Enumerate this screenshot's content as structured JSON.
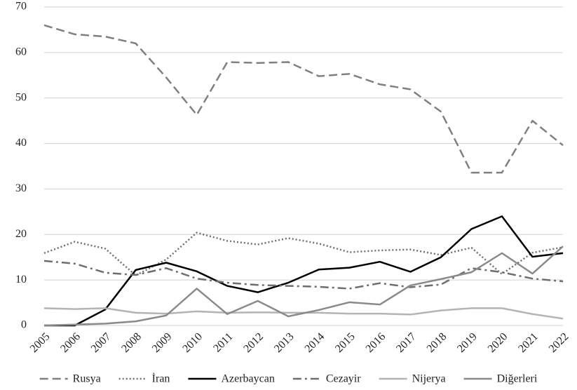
{
  "chart_data": {
    "type": "line",
    "categories": [
      "2005",
      "2006",
      "2007",
      "2008",
      "2009",
      "2010",
      "2011",
      "2012",
      "2013",
      "2014",
      "2015",
      "2016",
      "2017",
      "2018",
      "2019",
      "2020",
      "2021",
      "2022"
    ],
    "series": [
      {
        "name": "Rusya",
        "color": "#808080",
        "dash": "dashed",
        "values": [
          66,
          64,
          63.5,
          62,
          54.5,
          46.3,
          57.9,
          57.7,
          57.9,
          54.8,
          55.3,
          53,
          51.9,
          47,
          33.6,
          33.6,
          45,
          39.6
        ]
      },
      {
        "name": "İran",
        "color": "#707070",
        "dash": "dotted",
        "values": [
          15.9,
          18.4,
          16.9,
          11,
          14.5,
          20.4,
          18.6,
          17.8,
          19.2,
          18,
          16.1,
          16.5,
          16.7,
          15.5,
          17.1,
          11.3,
          16,
          17.2
        ]
      },
      {
        "name": "Azerbaycan",
        "color": "#000000",
        "dash": "solid",
        "values": [
          0,
          0,
          3.5,
          12.2,
          13.8,
          11.9,
          8.7,
          7.3,
          9.4,
          12.3,
          12.7,
          14,
          11.8,
          15,
          21.2,
          24,
          15.1,
          15.9
        ]
      },
      {
        "name": "Cezayir",
        "color": "#6e6e6e",
        "dash": "dashdot",
        "values": [
          14.2,
          13.6,
          11.6,
          11.1,
          12.6,
          10.3,
          9.4,
          8.9,
          8.7,
          8.5,
          8.1,
          9.3,
          8.4,
          9,
          12.6,
          11.7,
          10.3,
          9.7
        ]
      },
      {
        "name": "Nijerya",
        "color": "#b4b4b4",
        "dash": "solid",
        "values": [
          3.8,
          3.6,
          3.8,
          2.8,
          2.6,
          3.1,
          2.8,
          2.9,
          2.8,
          2.8,
          2.6,
          2.6,
          2.4,
          3.3,
          3.8,
          3.8,
          2.5,
          1.5
        ]
      },
      {
        "name": "Diğerleri",
        "color": "#8a8a8a",
        "dash": "solid",
        "values": [
          0,
          0.2,
          0.4,
          0.9,
          2.2,
          8.1,
          2.5,
          5.4,
          2,
          3.4,
          5.1,
          4.6,
          8.8,
          10.2,
          11.7,
          15.9,
          11.4,
          17.4
        ]
      }
    ],
    "ylim": [
      0,
      70
    ],
    "yticks": [
      0,
      10,
      20,
      30,
      40,
      50,
      60,
      70
    ],
    "grid": true,
    "legend": "bottom"
  }
}
